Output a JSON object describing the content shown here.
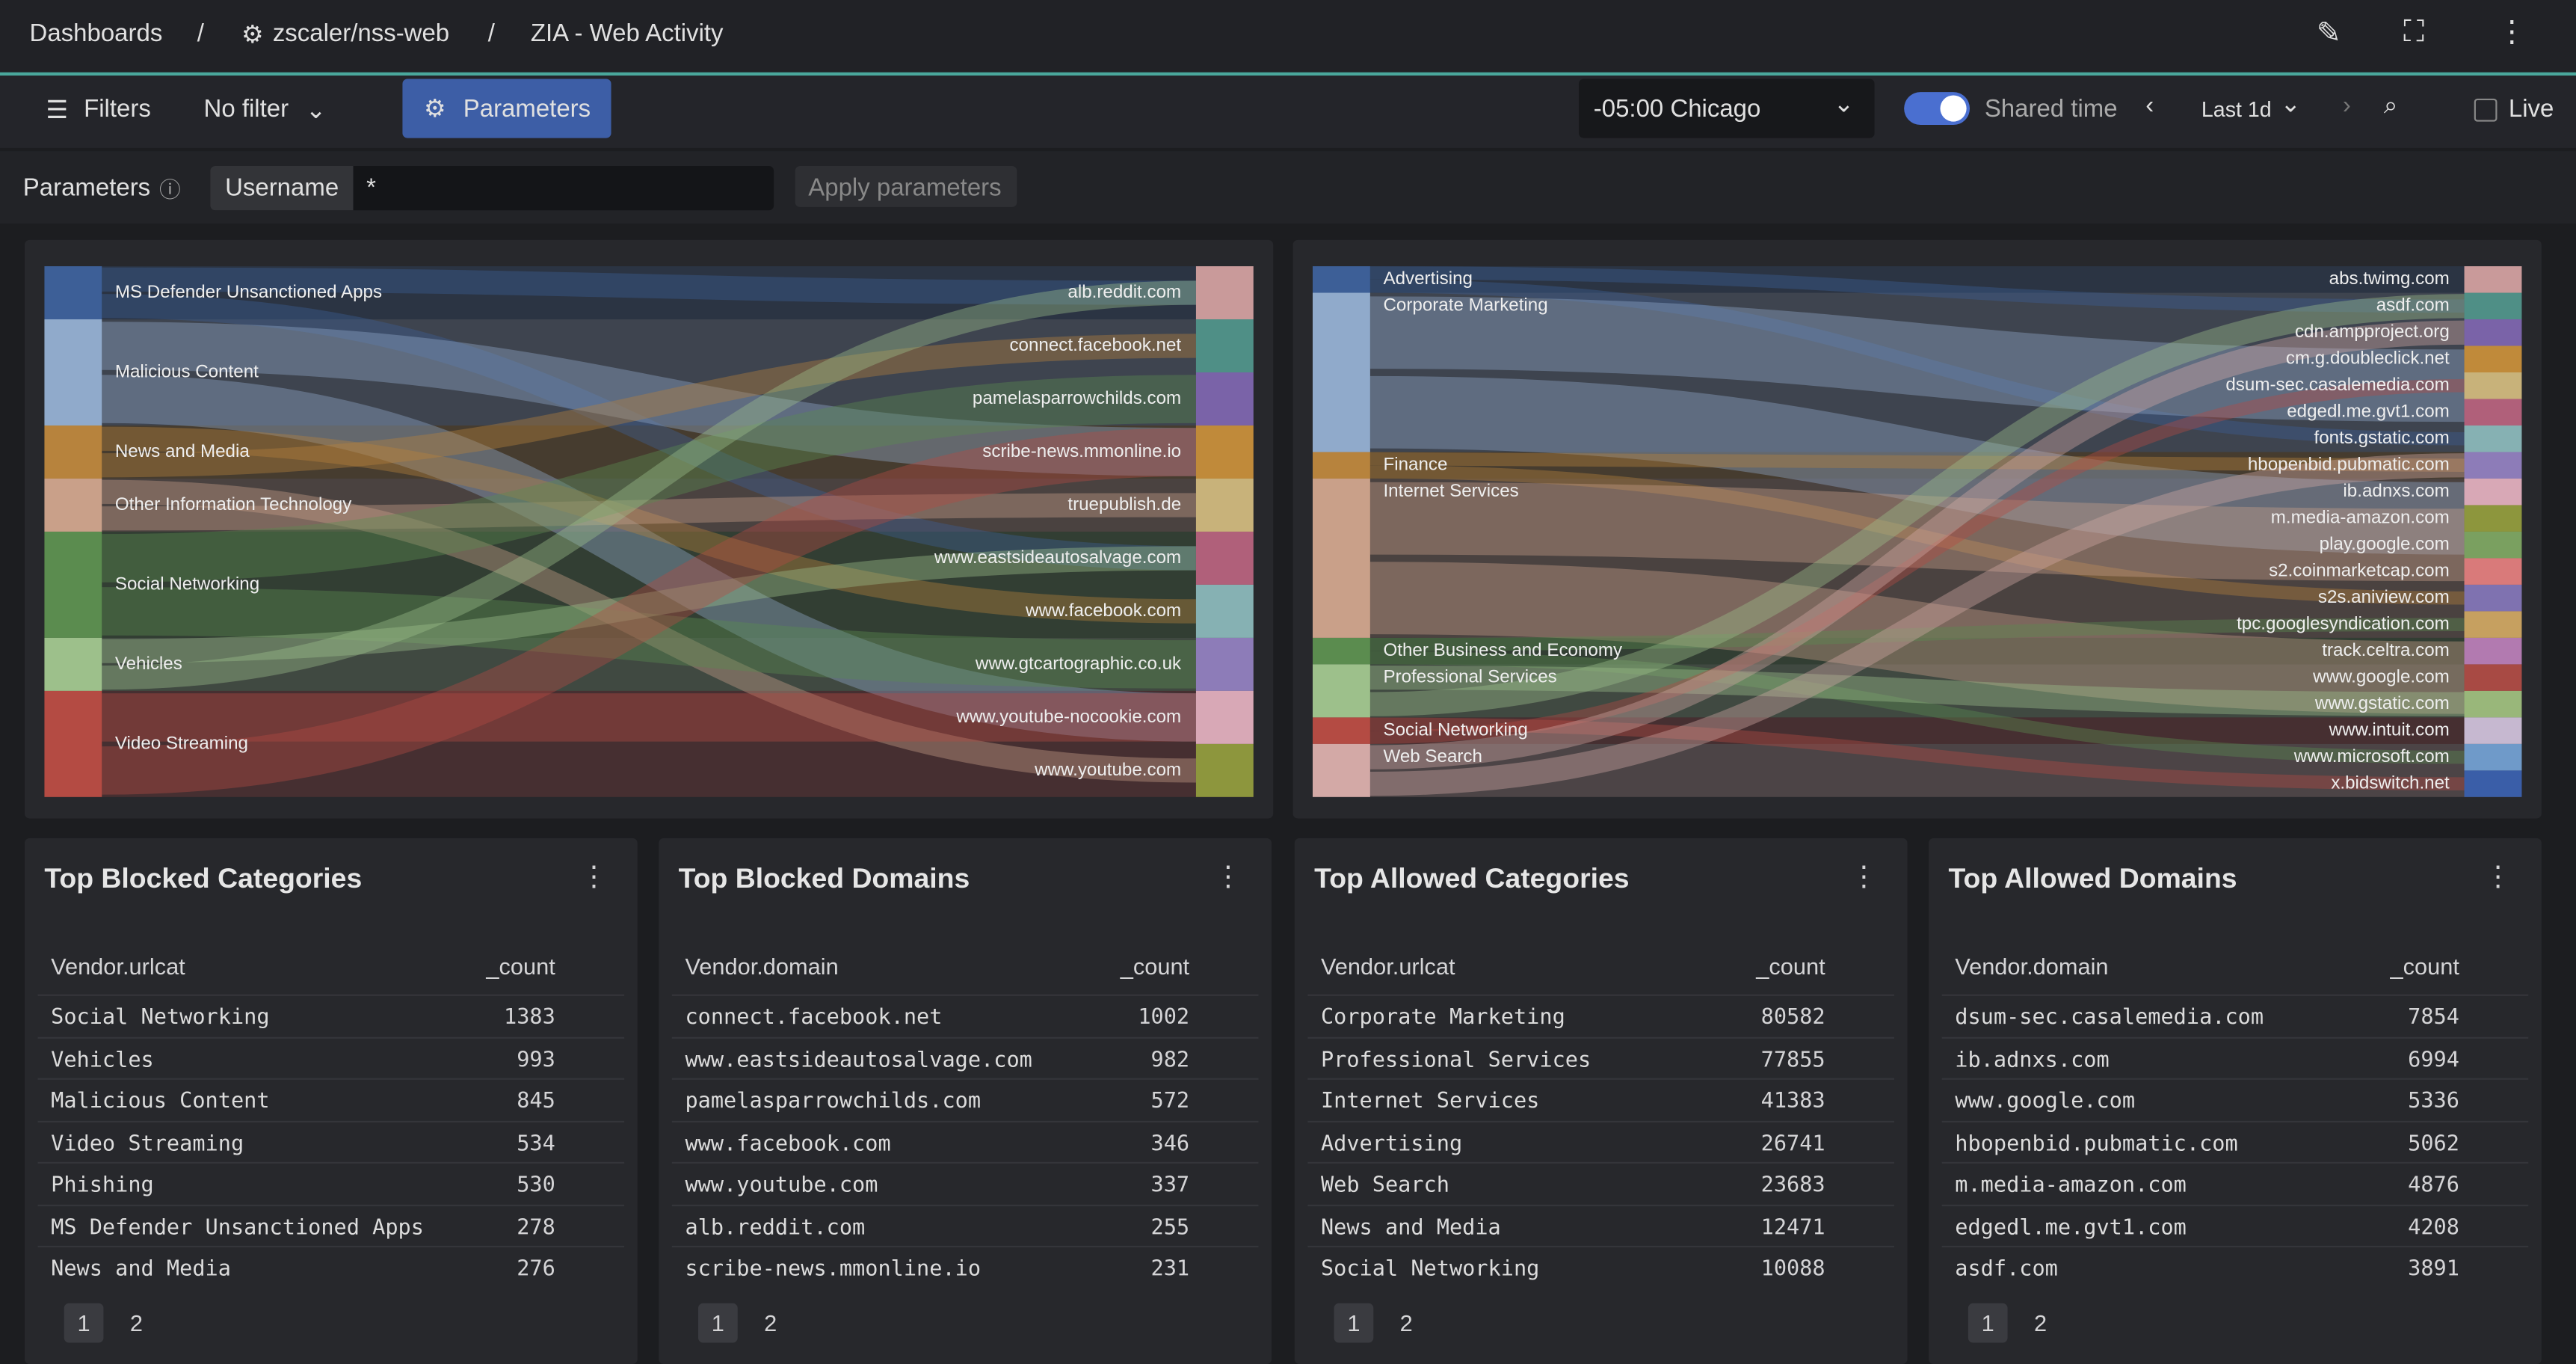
{
  "breadcrumb": [
    "Dashboards",
    "zscaler/nss-web",
    "ZIA - Web Activity"
  ],
  "toolbar": {
    "filters": "Filters",
    "filter_value": "No filter",
    "parameters": "Parameters",
    "timezone": "-05:00 Chicago",
    "shared_time": "Shared time",
    "range": "Last 1d",
    "live": "Live"
  },
  "parameters_bar": {
    "label": "Parameters",
    "field": "Username",
    "value": "*",
    "apply": "Apply parameters"
  },
  "sankeys": [
    {
      "sources": [
        "MS Defender Unsanctioned Apps",
        "Malicious Content",
        "News and Media",
        "Other Information Technology",
        "Social Networking",
        "Vehicles",
        "Video Streaming"
      ],
      "targets": [
        "alb.reddit.com",
        "connect.facebook.net",
        "pamelasparrowchilds.com",
        "scribe-news.mmonline.io",
        "truepublish.de",
        "www.eastsideautosalvage.com",
        "www.facebook.com",
        "www.gtcartographic.co.uk",
        "www.youtube-nocookie.com",
        "www.youtube.com"
      ]
    },
    {
      "sources": [
        "Advertising",
        "Corporate Marketing",
        "Finance",
        "Internet Services",
        "Other Business and Economy",
        "Professional Services",
        "Social Networking",
        "Web Search"
      ],
      "targets": [
        "abs.twimg.com",
        "asdf.com",
        "cdn.ampproject.org",
        "cm.g.doubleclick.net",
        "dsum-sec.casalemedia.com",
        "edgedl.me.gvt1.com",
        "fonts.gstatic.com",
        "hbopenbid.pubmatic.com",
        "ib.adnxs.com",
        "m.media-amazon.com",
        "play.google.com",
        "s2.coinmarketcap.com",
        "s2s.aniview.com",
        "tpc.googlesyndication.com",
        "track.celtra.com",
        "www.google.com",
        "www.gstatic.com",
        "www.intuit.com",
        "www.microsoft.com",
        "x.bidswitch.net"
      ]
    }
  ],
  "panels": [
    {
      "title": "Top Blocked Categories",
      "columns": [
        "Vendor.urlcat",
        "_count"
      ],
      "rows": [
        [
          "Social Networking",
          1383
        ],
        [
          "Vehicles",
          993
        ],
        [
          "Malicious Content",
          845
        ],
        [
          "Video Streaming",
          534
        ],
        [
          "Phishing",
          530
        ],
        [
          "MS Defender Unsanctioned Apps",
          278
        ],
        [
          "News and Media",
          276
        ]
      ],
      "pages": [
        1,
        2
      ]
    },
    {
      "title": "Top Blocked Domains",
      "columns": [
        "Vendor.domain",
        "_count"
      ],
      "rows": [
        [
          "connect.facebook.net",
          1002
        ],
        [
          "www.eastsideautosalvage.com",
          982
        ],
        [
          "pamelasparrowchilds.com",
          572
        ],
        [
          "www.facebook.com",
          346
        ],
        [
          "www.youtube.com",
          337
        ],
        [
          "alb.reddit.com",
          255
        ],
        [
          "scribe-news.mmonline.io",
          231
        ]
      ],
      "pages": [
        1,
        2
      ]
    },
    {
      "title": "Top Allowed Categories",
      "columns": [
        "Vendor.urlcat",
        "_count"
      ],
      "rows": [
        [
          "Corporate Marketing",
          80582
        ],
        [
          "Professional Services",
          77855
        ],
        [
          "Internet Services",
          41383
        ],
        [
          "Advertising",
          26741
        ],
        [
          "Web Search",
          23683
        ],
        [
          "News and Media",
          12471
        ],
        [
          "Social Networking",
          10088
        ]
      ],
      "pages": [
        1,
        2
      ]
    },
    {
      "title": "Top Allowed Domains",
      "columns": [
        "Vendor.domain",
        "_count"
      ],
      "rows": [
        [
          "dsum-sec.casalemedia.com",
          7854
        ],
        [
          "ib.adnxs.com",
          6994
        ],
        [
          "www.google.com",
          5336
        ],
        [
          "hbopenbid.pubmatic.com",
          5062
        ],
        [
          "m.media-amazon.com",
          4876
        ],
        [
          "edgedl.me.gvt1.com",
          4208
        ],
        [
          "asdf.com",
          3891
        ]
      ],
      "pages": [
        1,
        2
      ]
    }
  ]
}
